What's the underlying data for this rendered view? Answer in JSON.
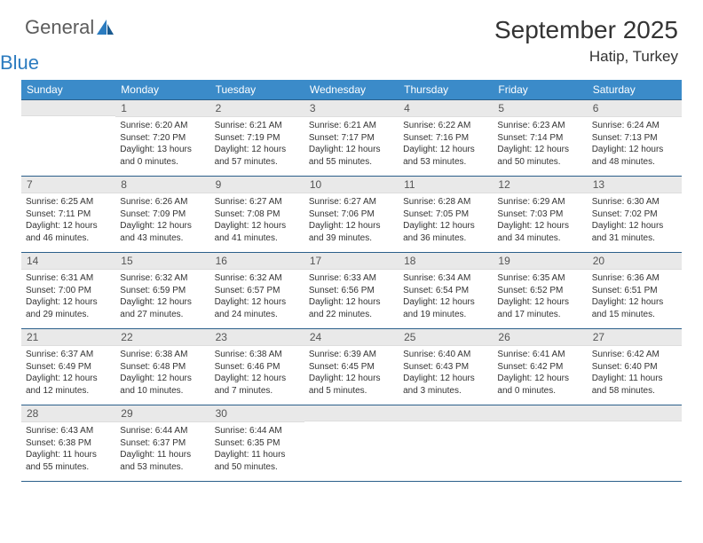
{
  "brand": {
    "word1": "General",
    "word2": "Blue",
    "logo_color": "#2b7bbf",
    "text_color": "#5c5c5c"
  },
  "title": "September 2025",
  "location": "Hatip, Turkey",
  "colors": {
    "header_bg": "#3b8bc9",
    "row_border": "#2b5f8a",
    "daynum_bg": "#e9e9e9"
  },
  "dow": [
    "Sunday",
    "Monday",
    "Tuesday",
    "Wednesday",
    "Thursday",
    "Friday",
    "Saturday"
  ],
  "weeks": [
    [
      null,
      {
        "n": "1",
        "sr": "6:20 AM",
        "ss": "7:20 PM",
        "dl": "13 hours and 0 minutes."
      },
      {
        "n": "2",
        "sr": "6:21 AM",
        "ss": "7:19 PM",
        "dl": "12 hours and 57 minutes."
      },
      {
        "n": "3",
        "sr": "6:21 AM",
        "ss": "7:17 PM",
        "dl": "12 hours and 55 minutes."
      },
      {
        "n": "4",
        "sr": "6:22 AM",
        "ss": "7:16 PM",
        "dl": "12 hours and 53 minutes."
      },
      {
        "n": "5",
        "sr": "6:23 AM",
        "ss": "7:14 PM",
        "dl": "12 hours and 50 minutes."
      },
      {
        "n": "6",
        "sr": "6:24 AM",
        "ss": "7:13 PM",
        "dl": "12 hours and 48 minutes."
      }
    ],
    [
      {
        "n": "7",
        "sr": "6:25 AM",
        "ss": "7:11 PM",
        "dl": "12 hours and 46 minutes."
      },
      {
        "n": "8",
        "sr": "6:26 AM",
        "ss": "7:09 PM",
        "dl": "12 hours and 43 minutes."
      },
      {
        "n": "9",
        "sr": "6:27 AM",
        "ss": "7:08 PM",
        "dl": "12 hours and 41 minutes."
      },
      {
        "n": "10",
        "sr": "6:27 AM",
        "ss": "7:06 PM",
        "dl": "12 hours and 39 minutes."
      },
      {
        "n": "11",
        "sr": "6:28 AM",
        "ss": "7:05 PM",
        "dl": "12 hours and 36 minutes."
      },
      {
        "n": "12",
        "sr": "6:29 AM",
        "ss": "7:03 PM",
        "dl": "12 hours and 34 minutes."
      },
      {
        "n": "13",
        "sr": "6:30 AM",
        "ss": "7:02 PM",
        "dl": "12 hours and 31 minutes."
      }
    ],
    [
      {
        "n": "14",
        "sr": "6:31 AM",
        "ss": "7:00 PM",
        "dl": "12 hours and 29 minutes."
      },
      {
        "n": "15",
        "sr": "6:32 AM",
        "ss": "6:59 PM",
        "dl": "12 hours and 27 minutes."
      },
      {
        "n": "16",
        "sr": "6:32 AM",
        "ss": "6:57 PM",
        "dl": "12 hours and 24 minutes."
      },
      {
        "n": "17",
        "sr": "6:33 AM",
        "ss": "6:56 PM",
        "dl": "12 hours and 22 minutes."
      },
      {
        "n": "18",
        "sr": "6:34 AM",
        "ss": "6:54 PM",
        "dl": "12 hours and 19 minutes."
      },
      {
        "n": "19",
        "sr": "6:35 AM",
        "ss": "6:52 PM",
        "dl": "12 hours and 17 minutes."
      },
      {
        "n": "20",
        "sr": "6:36 AM",
        "ss": "6:51 PM",
        "dl": "12 hours and 15 minutes."
      }
    ],
    [
      {
        "n": "21",
        "sr": "6:37 AM",
        "ss": "6:49 PM",
        "dl": "12 hours and 12 minutes."
      },
      {
        "n": "22",
        "sr": "6:38 AM",
        "ss": "6:48 PM",
        "dl": "12 hours and 10 minutes."
      },
      {
        "n": "23",
        "sr": "6:38 AM",
        "ss": "6:46 PM",
        "dl": "12 hours and 7 minutes."
      },
      {
        "n": "24",
        "sr": "6:39 AM",
        "ss": "6:45 PM",
        "dl": "12 hours and 5 minutes."
      },
      {
        "n": "25",
        "sr": "6:40 AM",
        "ss": "6:43 PM",
        "dl": "12 hours and 3 minutes."
      },
      {
        "n": "26",
        "sr": "6:41 AM",
        "ss": "6:42 PM",
        "dl": "12 hours and 0 minutes."
      },
      {
        "n": "27",
        "sr": "6:42 AM",
        "ss": "6:40 PM",
        "dl": "11 hours and 58 minutes."
      }
    ],
    [
      {
        "n": "28",
        "sr": "6:43 AM",
        "ss": "6:38 PM",
        "dl": "11 hours and 55 minutes."
      },
      {
        "n": "29",
        "sr": "6:44 AM",
        "ss": "6:37 PM",
        "dl": "11 hours and 53 minutes."
      },
      {
        "n": "30",
        "sr": "6:44 AM",
        "ss": "6:35 PM",
        "dl": "11 hours and 50 minutes."
      },
      null,
      null,
      null,
      null
    ]
  ],
  "labels": {
    "sunrise": "Sunrise:",
    "sunset": "Sunset:",
    "daylight": "Daylight:"
  }
}
